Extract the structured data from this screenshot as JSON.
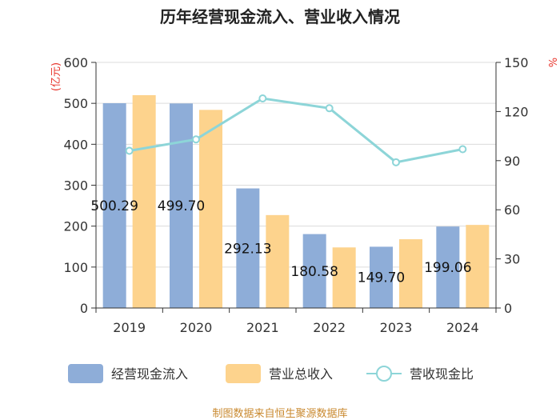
{
  "chart_data": {
    "type": "bar+line",
    "title": "历年经营现金流入、营业收入情况",
    "categories": [
      "2019",
      "2020",
      "2021",
      "2022",
      "2023",
      "2024"
    ],
    "series": [
      {
        "name": "经营现金流入",
        "type": "bar",
        "axis": "left",
        "color": "#8eadd8",
        "values": [
          500.29,
          499.7,
          292.13,
          180.58,
          149.7,
          199.06
        ]
      },
      {
        "name": "营业总收入",
        "type": "bar",
        "axis": "left",
        "color": "#fdd38d",
        "values": [
          520,
          484,
          227,
          148,
          168,
          203
        ]
      },
      {
        "name": "营收现金比",
        "type": "line",
        "axis": "right",
        "color": "#8dd5d8",
        "values": [
          96,
          103,
          128,
          122,
          89,
          97
        ]
      }
    ],
    "data_labels": [
      "500.29",
      "499.70",
      "292.13",
      "180.58",
      "149.70",
      "199.06"
    ],
    "left_axis": {
      "label": "(亿元)",
      "ylim": [
        0,
        600
      ],
      "ticks": [
        0,
        100,
        200,
        300,
        400,
        500,
        600
      ]
    },
    "right_axis": {
      "label": "%",
      "ylim": [
        0,
        150
      ],
      "ticks": [
        0,
        30,
        60,
        90,
        120,
        150
      ]
    },
    "legend_position": "bottom",
    "grid": true
  },
  "footer": "制图数据来自恒生聚源数据库"
}
